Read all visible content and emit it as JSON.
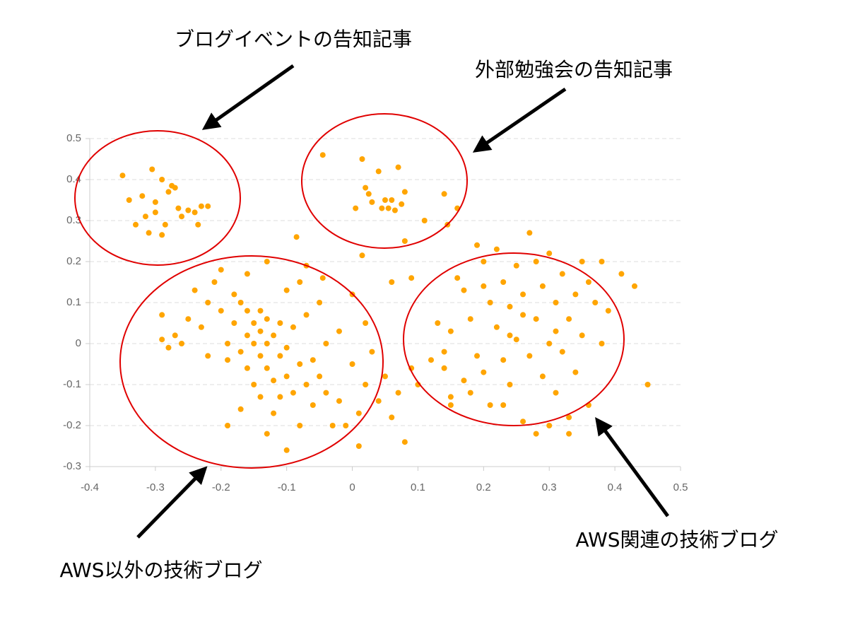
{
  "chart_data": {
    "type": "scatter",
    "color": "#ffa500",
    "grid": true,
    "xlim": [
      -0.4,
      0.5
    ],
    "ylim": [
      -0.3,
      0.5
    ],
    "xticks": [
      -0.4,
      -0.3,
      -0.2,
      -0.1,
      0,
      0.1,
      0.2,
      0.3,
      0.4,
      0.5
    ],
    "yticks": [
      -0.3,
      -0.2,
      -0.1,
      0,
      0.1,
      0.2,
      0.3,
      0.4,
      0.5
    ],
    "annotations": [
      "ブログイベントの告知記事",
      "外部勉強会の告知記事",
      "AWS以外の技術ブログ",
      "AWS関連の技術ブログ"
    ],
    "points": [
      [
        -0.35,
        0.41
      ],
      [
        -0.34,
        0.35
      ],
      [
        -0.33,
        0.29
      ],
      [
        -0.32,
        0.36
      ],
      [
        -0.31,
        0.27
      ],
      [
        -0.305,
        0.425
      ],
      [
        -0.3,
        0.32
      ],
      [
        -0.29,
        0.4
      ],
      [
        -0.28,
        0.37
      ],
      [
        -0.275,
        0.385
      ],
      [
        -0.27,
        0.38
      ],
      [
        -0.265,
        0.33
      ],
      [
        -0.26,
        0.31
      ],
      [
        -0.25,
        0.325
      ],
      [
        -0.24,
        0.32
      ],
      [
        -0.235,
        0.29
      ],
      [
        -0.23,
        0.335
      ],
      [
        -0.22,
        0.335
      ],
      [
        -0.29,
        0.265
      ],
      [
        -0.285,
        0.29
      ],
      [
        -0.3,
        0.345
      ],
      [
        -0.315,
        0.31
      ],
      [
        -0.045,
        0.46
      ],
      [
        0.015,
        0.45
      ],
      [
        0.02,
        0.38
      ],
      [
        0.025,
        0.365
      ],
      [
        0.005,
        0.33
      ],
      [
        0.04,
        0.42
      ],
      [
        0.05,
        0.35
      ],
      [
        0.045,
        0.33
      ],
      [
        0.06,
        0.35
      ],
      [
        0.07,
        0.43
      ],
      [
        0.075,
        0.34
      ],
      [
        0.08,
        0.37
      ],
      [
        0.065,
        0.325
      ],
      [
        0.055,
        0.33
      ],
      [
        0.03,
        0.345
      ],
      [
        0.14,
        0.365
      ],
      [
        0.11,
        0.3
      ],
      [
        0.16,
        0.33
      ],
      [
        0.145,
        0.29
      ],
      [
        0.08,
        0.25
      ],
      [
        -0.085,
        0.26
      ],
      [
        0.015,
        0.215
      ],
      [
        -0.29,
        0.07
      ],
      [
        -0.29,
        0.01
      ],
      [
        -0.28,
        -0.01
      ],
      [
        -0.27,
        0.02
      ],
      [
        -0.26,
        0.0
      ],
      [
        -0.25,
        0.06
      ],
      [
        -0.24,
        0.13
      ],
      [
        -0.23,
        0.04
      ],
      [
        -0.22,
        -0.03
      ],
      [
        -0.21,
        0.15
      ],
      [
        -0.2,
        0.08
      ],
      [
        -0.2,
        0.18
      ],
      [
        -0.19,
        0.0
      ],
      [
        -0.19,
        -0.04
      ],
      [
        -0.18,
        0.12
      ],
      [
        -0.18,
        0.05
      ],
      [
        -0.17,
        0.1
      ],
      [
        -0.17,
        -0.02
      ],
      [
        -0.16,
        0.08
      ],
      [
        -0.16,
        0.02
      ],
      [
        -0.16,
        -0.06
      ],
      [
        -0.15,
        0.05
      ],
      [
        -0.15,
        0.0
      ],
      [
        -0.15,
        -0.1
      ],
      [
        -0.14,
        0.08
      ],
      [
        -0.14,
        0.03
      ],
      [
        -0.14,
        -0.03
      ],
      [
        -0.14,
        -0.13
      ],
      [
        -0.13,
        0.06
      ],
      [
        -0.13,
        0.0
      ],
      [
        -0.13,
        -0.06
      ],
      [
        -0.12,
        0.02
      ],
      [
        -0.12,
        -0.09
      ],
      [
        -0.12,
        -0.17
      ],
      [
        -0.11,
        0.05
      ],
      [
        -0.11,
        -0.03
      ],
      [
        -0.11,
        -0.13
      ],
      [
        -0.1,
        0.13
      ],
      [
        -0.1,
        -0.01
      ],
      [
        -0.1,
        -0.08
      ],
      [
        -0.1,
        -0.26
      ],
      [
        -0.09,
        0.04
      ],
      [
        -0.09,
        -0.12
      ],
      [
        -0.08,
        0.15
      ],
      [
        -0.08,
        -0.05
      ],
      [
        -0.08,
        -0.2
      ],
      [
        -0.07,
        0.07
      ],
      [
        -0.07,
        -0.1
      ],
      [
        -0.06,
        -0.04
      ],
      [
        -0.06,
        -0.15
      ],
      [
        -0.05,
        0.1
      ],
      [
        -0.05,
        -0.08
      ],
      [
        -0.04,
        0.0
      ],
      [
        -0.04,
        -0.12
      ],
      [
        -0.03,
        -0.2
      ],
      [
        -0.02,
        0.03
      ],
      [
        -0.02,
        -0.14
      ],
      [
        -0.01,
        -0.2
      ],
      [
        0.0,
        0.12
      ],
      [
        0.0,
        -0.05
      ],
      [
        0.01,
        -0.17
      ],
      [
        0.02,
        0.05
      ],
      [
        0.02,
        -0.1
      ],
      [
        0.03,
        -0.02
      ],
      [
        0.04,
        -0.14
      ],
      [
        0.05,
        -0.08
      ],
      [
        0.06,
        -0.18
      ],
      [
        0.07,
        -0.12
      ],
      [
        0.08,
        -0.24
      ],
      [
        0.09,
        -0.06
      ],
      [
        0.1,
        -0.1
      ],
      [
        -0.13,
        0.2
      ],
      [
        -0.16,
        0.17
      ],
      [
        -0.22,
        0.1
      ],
      [
        -0.17,
        -0.16
      ],
      [
        -0.19,
        -0.2
      ],
      [
        -0.13,
        -0.22
      ],
      [
        -0.07,
        0.19
      ],
      [
        0.01,
        -0.25
      ],
      [
        0.06,
        0.15
      ],
      [
        0.09,
        0.16
      ],
      [
        -0.045,
        0.16
      ],
      [
        0.12,
        -0.04
      ],
      [
        0.14,
        -0.06
      ],
      [
        0.15,
        -0.15
      ],
      [
        0.13,
        0.05
      ],
      [
        0.14,
        -0.02
      ],
      [
        0.15,
        0.03
      ],
      [
        0.16,
        0.16
      ],
      [
        0.17,
        0.13
      ],
      [
        0.18,
        -0.12
      ],
      [
        0.18,
        0.06
      ],
      [
        0.19,
        0.24
      ],
      [
        0.19,
        -0.03
      ],
      [
        0.2,
        0.2
      ],
      [
        0.2,
        -0.07
      ],
      [
        0.21,
        0.1
      ],
      [
        0.21,
        -0.15
      ],
      [
        0.22,
        0.04
      ],
      [
        0.22,
        0.23
      ],
      [
        0.23,
        -0.04
      ],
      [
        0.23,
        0.15
      ],
      [
        0.24,
        0.09
      ],
      [
        0.24,
        -0.1
      ],
      [
        0.25,
        0.19
      ],
      [
        0.25,
        0.01
      ],
      [
        0.26,
        0.12
      ],
      [
        0.26,
        -0.19
      ],
      [
        0.27,
        0.27
      ],
      [
        0.27,
        -0.03
      ],
      [
        0.28,
        0.06
      ],
      [
        0.28,
        0.2
      ],
      [
        0.29,
        -0.08
      ],
      [
        0.29,
        0.14
      ],
      [
        0.3,
        0.0
      ],
      [
        0.3,
        -0.2
      ],
      [
        0.31,
        0.1
      ],
      [
        0.31,
        -0.12
      ],
      [
        0.32,
        0.17
      ],
      [
        0.32,
        -0.02
      ],
      [
        0.33,
        0.06
      ],
      [
        0.33,
        -0.18
      ],
      [
        0.34,
        0.12
      ],
      [
        0.34,
        -0.07
      ],
      [
        0.35,
        0.2
      ],
      [
        0.35,
        0.02
      ],
      [
        0.36,
        0.15
      ],
      [
        0.36,
        -0.15
      ],
      [
        0.37,
        0.1
      ],
      [
        0.38,
        0.2
      ],
      [
        0.38,
        0.0
      ],
      [
        0.39,
        0.08
      ],
      [
        0.41,
        0.17
      ],
      [
        0.43,
        0.14
      ],
      [
        0.45,
        -0.1
      ],
      [
        0.3,
        0.22
      ],
      [
        0.26,
        0.07
      ],
      [
        0.24,
        0.02
      ],
      [
        0.31,
        0.03
      ],
      [
        0.28,
        -0.22
      ],
      [
        0.33,
        -0.22
      ],
      [
        0.23,
        -0.15
      ],
      [
        0.17,
        -0.09
      ],
      [
        0.15,
        -0.13
      ],
      [
        0.2,
        0.14
      ]
    ]
  }
}
